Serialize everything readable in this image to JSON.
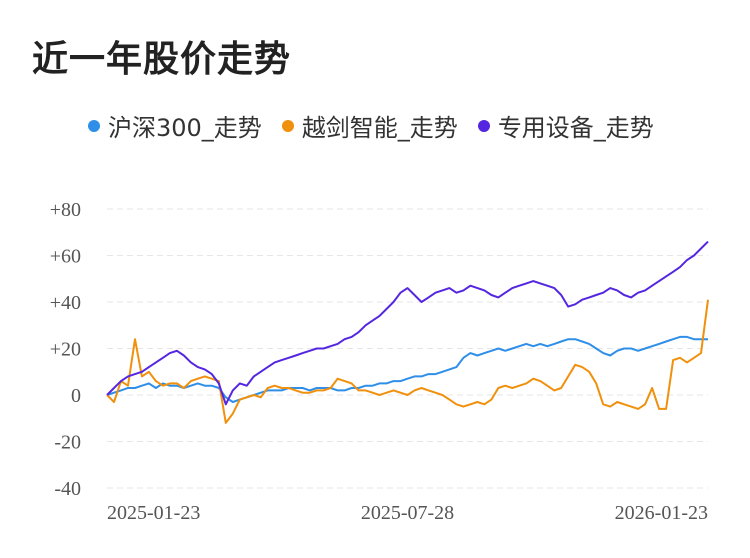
{
  "chart_data": {
    "type": "line",
    "title": "近一年股价走势",
    "x_tick_labels": [
      "2025-01-23",
      "2025-07-28",
      "2026-01-23"
    ],
    "y_tick_labels": [
      "+80",
      "+60",
      "+40",
      "+20",
      "0",
      "-20",
      "-40"
    ],
    "ylim": [
      -40,
      80
    ],
    "grid": true,
    "legend_position": "top",
    "series": [
      {
        "name": "沪深300_走势",
        "color": "#2f8fe8",
        "values": [
          0,
          1,
          2,
          3,
          3,
          4,
          5,
          3,
          5,
          4,
          4,
          3,
          4,
          5,
          4,
          4,
          3,
          -1,
          -3,
          -2,
          -1,
          0,
          1,
          2,
          2,
          2,
          3,
          3,
          3,
          2,
          3,
          3,
          3,
          2,
          2,
          3,
          3,
          4,
          4,
          5,
          5,
          6,
          6,
          7,
          8,
          8,
          9,
          9,
          10,
          11,
          12,
          16,
          18,
          17,
          18,
          19,
          20,
          19,
          20,
          21,
          22,
          21,
          22,
          21,
          22,
          23,
          24,
          24,
          23,
          22,
          20,
          18,
          17,
          19,
          20,
          20,
          19,
          20,
          21,
          22,
          23,
          24,
          25,
          25,
          24,
          24,
          24
        ]
      },
      {
        "name": "越剑智能_走势",
        "color": "#f0900c",
        "values": [
          0,
          -3,
          6,
          4,
          24,
          8,
          10,
          6,
          4,
          5,
          5,
          3,
          6,
          7,
          8,
          7,
          6,
          -12,
          -8,
          -2,
          -1,
          0,
          -1,
          3,
          4,
          3,
          3,
          2,
          1,
          1,
          2,
          2,
          3,
          7,
          6,
          5,
          2,
          2,
          1,
          0,
          1,
          2,
          1,
          0,
          2,
          3,
          2,
          1,
          0,
          -2,
          -4,
          -5,
          -4,
          -3,
          -4,
          -2,
          3,
          4,
          3,
          4,
          5,
          7,
          6,
          4,
          2,
          3,
          8,
          13,
          12,
          10,
          5,
          -4,
          -5,
          -3,
          -4,
          -5,
          -6,
          -4,
          3,
          -6,
          -6,
          15,
          16,
          14,
          16,
          18,
          41
        ]
      },
      {
        "name": "专用设备_走势",
        "color": "#5426e0",
        "values": [
          0,
          3,
          6,
          8,
          9,
          10,
          12,
          14,
          16,
          18,
          19,
          17,
          14,
          12,
          11,
          9,
          5,
          -4,
          2,
          5,
          4,
          8,
          10,
          12,
          14,
          15,
          16,
          17,
          18,
          19,
          20,
          20,
          21,
          22,
          24,
          25,
          27,
          30,
          32,
          34,
          37,
          40,
          44,
          46,
          43,
          40,
          42,
          44,
          45,
          46,
          44,
          45,
          47,
          46,
          45,
          43,
          42,
          44,
          46,
          47,
          48,
          49,
          48,
          47,
          46,
          43,
          38,
          39,
          41,
          42,
          43,
          44,
          46,
          45,
          43,
          42,
          44,
          45,
          47,
          49,
          51,
          53,
          55,
          58,
          60,
          63,
          66
        ]
      }
    ]
  }
}
